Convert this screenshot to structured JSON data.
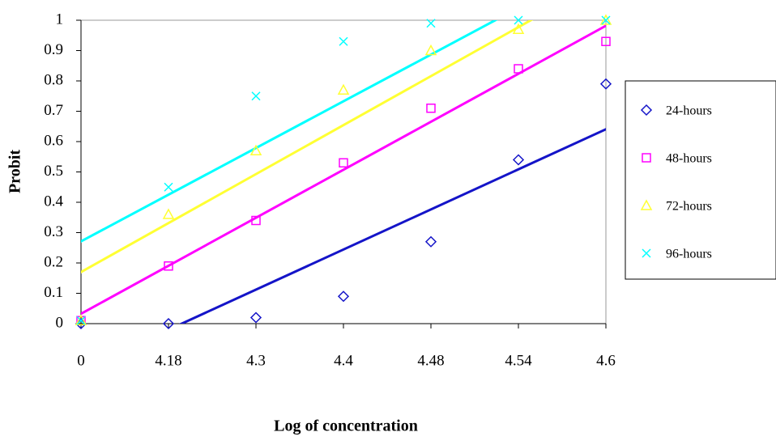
{
  "chart_data": {
    "type": "scatter",
    "x_label": "Log of concentration",
    "y_label": "Probit",
    "categories": [
      "0",
      "4.18",
      "4.3",
      "4.4",
      "4.48",
      "4.54",
      "4.6"
    ],
    "series": [
      {
        "name": "24-hours",
        "color": "#1414c8",
        "marker": "diamond",
        "values": [
          0,
          0,
          0.02,
          0.09,
          0.27,
          0.54,
          0.79
        ]
      },
      {
        "name": "48-hours",
        "color": "#ff00ff",
        "marker": "square",
        "values": [
          0.01,
          0.19,
          0.34,
          0.53,
          0.71,
          0.84,
          0.93
        ]
      },
      {
        "name": "72-hours",
        "color": "#ffff33",
        "marker": "triangle",
        "values": [
          0.01,
          0.36,
          0.57,
          0.77,
          0.9,
          0.97,
          1.0
        ]
      },
      {
        "name": "96-hours",
        "color": "#00ffff",
        "marker": "cross",
        "values": [
          0.01,
          0.45,
          0.75,
          0.93,
          0.99,
          1.0,
          1.0
        ]
      }
    ],
    "trendline": "linear",
    "ylim": [
      0,
      1
    ],
    "yticks": [
      0,
      0.1,
      0.2,
      0.3,
      0.4,
      0.5,
      0.6,
      0.7,
      0.8,
      0.9,
      1
    ],
    "legend": "right"
  }
}
